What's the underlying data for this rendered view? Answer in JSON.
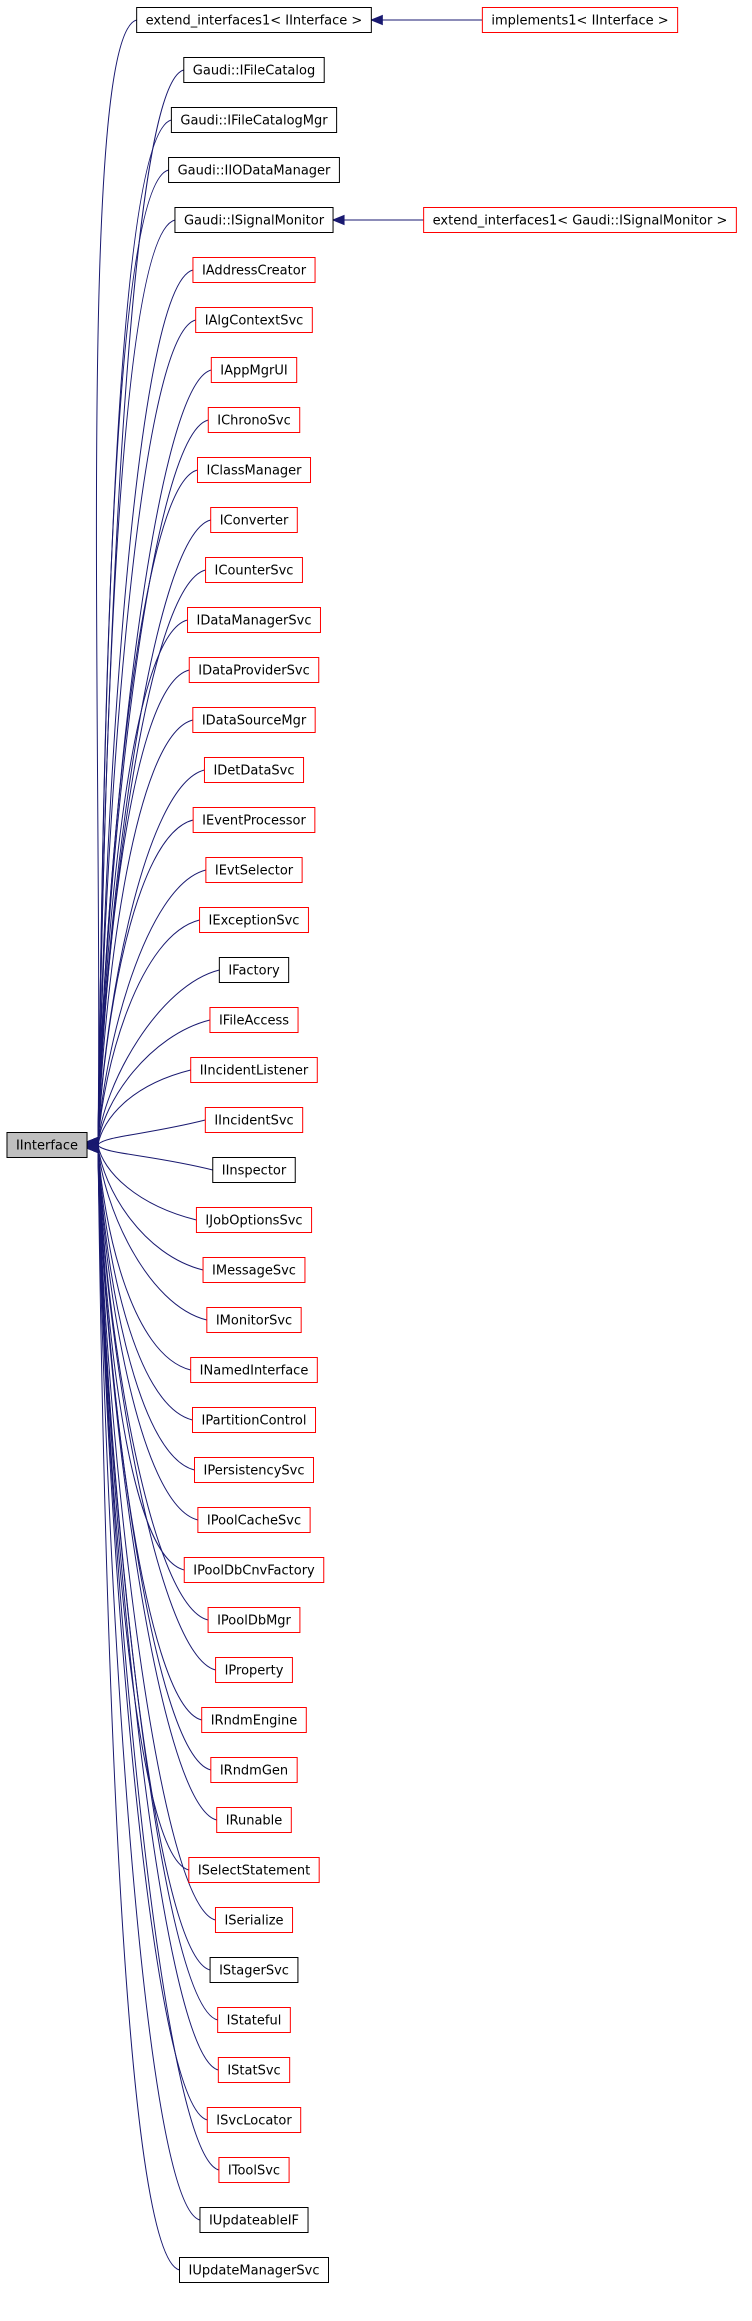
{
  "root": {
    "label": "IInterface"
  },
  "nodes": [
    {
      "label": "extend_interfaces1< IInterface >",
      "color": "#000000",
      "derived": {
        "label": "implements1< IInterface >",
        "color": "#ff0000"
      }
    },
    {
      "label": "Gaudi::IFileCatalog",
      "color": "#000000"
    },
    {
      "label": "Gaudi::IFileCatalogMgr",
      "color": "#000000"
    },
    {
      "label": "Gaudi::IIODataManager",
      "color": "#000000"
    },
    {
      "label": "Gaudi::ISignalMonitor",
      "color": "#000000",
      "derived": {
        "label": "extend_interfaces1< Gaudi::ISignalMonitor >",
        "color": "#ff0000"
      }
    },
    {
      "label": "IAddressCreator",
      "color": "#ff0000"
    },
    {
      "label": "IAlgContextSvc",
      "color": "#ff0000"
    },
    {
      "label": "IAppMgrUI",
      "color": "#ff0000"
    },
    {
      "label": "IChronoSvc",
      "color": "#ff0000"
    },
    {
      "label": "IClassManager",
      "color": "#ff0000"
    },
    {
      "label": "IConverter",
      "color": "#ff0000"
    },
    {
      "label": "ICounterSvc",
      "color": "#ff0000"
    },
    {
      "label": "IDataManagerSvc",
      "color": "#ff0000"
    },
    {
      "label": "IDataProviderSvc",
      "color": "#ff0000"
    },
    {
      "label": "IDataSourceMgr",
      "color": "#ff0000"
    },
    {
      "label": "IDetDataSvc",
      "color": "#ff0000"
    },
    {
      "label": "IEventProcessor",
      "color": "#ff0000"
    },
    {
      "label": "IEvtSelector",
      "color": "#ff0000"
    },
    {
      "label": "IExceptionSvc",
      "color": "#ff0000"
    },
    {
      "label": "IFactory",
      "color": "#000000"
    },
    {
      "label": "IFileAccess",
      "color": "#ff0000"
    },
    {
      "label": "IIncidentListener",
      "color": "#ff0000"
    },
    {
      "label": "IIncidentSvc",
      "color": "#ff0000"
    },
    {
      "label": "IInspector",
      "color": "#000000"
    },
    {
      "label": "IJobOptionsSvc",
      "color": "#ff0000"
    },
    {
      "label": "IMessageSvc",
      "color": "#ff0000"
    },
    {
      "label": "IMonitorSvc",
      "color": "#ff0000"
    },
    {
      "label": "INamedInterface",
      "color": "#ff0000"
    },
    {
      "label": "IPartitionControl",
      "color": "#ff0000"
    },
    {
      "label": "IPersistencySvc",
      "color": "#ff0000"
    },
    {
      "label": "IPoolCacheSvc",
      "color": "#ff0000"
    },
    {
      "label": "IPoolDbCnvFactory",
      "color": "#ff0000"
    },
    {
      "label": "IPoolDbMgr",
      "color": "#ff0000"
    },
    {
      "label": "IProperty",
      "color": "#ff0000"
    },
    {
      "label": "IRndmEngine",
      "color": "#ff0000"
    },
    {
      "label": "IRndmGen",
      "color": "#ff0000"
    },
    {
      "label": "IRunable",
      "color": "#ff0000"
    },
    {
      "label": "ISelectStatement",
      "color": "#ff0000"
    },
    {
      "label": "ISerialize",
      "color": "#ff0000"
    },
    {
      "label": "IStagerSvc",
      "color": "#000000"
    },
    {
      "label": "IStateful",
      "color": "#ff0000"
    },
    {
      "label": "IStatSvc",
      "color": "#ff0000"
    },
    {
      "label": "ISvcLocator",
      "color": "#ff0000"
    },
    {
      "label": "IToolSvc",
      "color": "#ff0000"
    },
    {
      "label": "IUpdateableIF",
      "color": "#000000"
    },
    {
      "label": "IUpdateManagerSvc",
      "color": "#000000"
    }
  ]
}
